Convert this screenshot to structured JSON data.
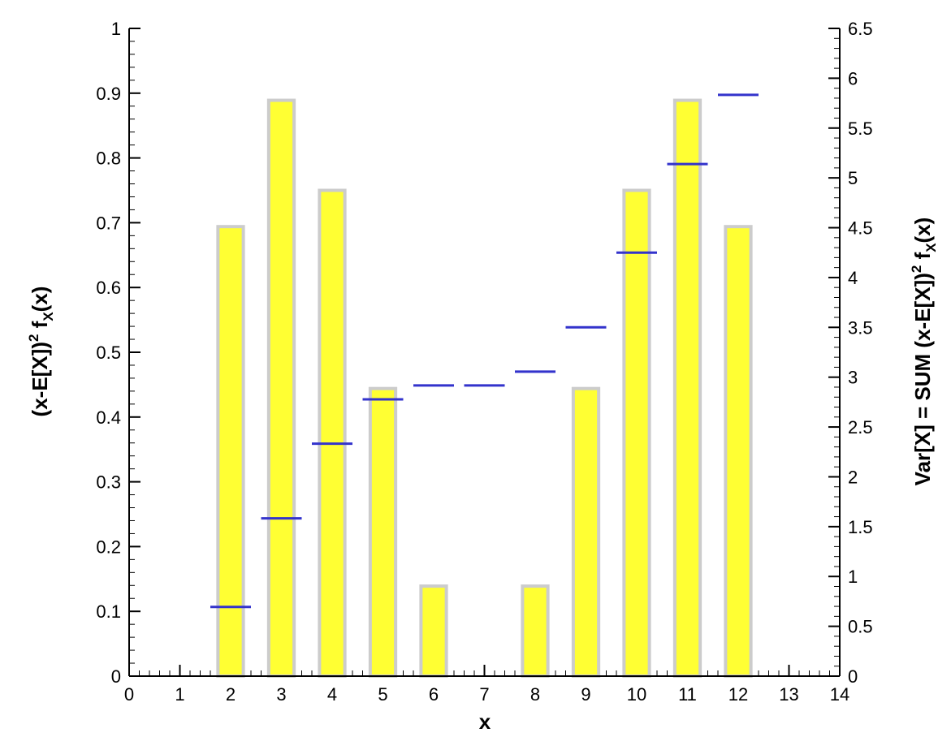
{
  "chart_data": {
    "type": "bar",
    "xlabel": "x",
    "ylabel_left": {
      "main_1": "(x-E[X])",
      "sup": "2",
      "main_2": " f",
      "sub": "X",
      "main_3": "(x)"
    },
    "ylabel_right": {
      "main_1": "Var[X] = SUM (x-E[X])",
      "sup": "2",
      "main_2": " f",
      "sub": "X",
      "main_3": "(x)"
    },
    "xlim": [
      0,
      14
    ],
    "ylim_left": [
      0,
      1
    ],
    "ylim_right": [
      0,
      6.5
    ],
    "x_ticks": [
      "0",
      "1",
      "2",
      "3",
      "4",
      "5",
      "6",
      "7",
      "8",
      "9",
      "10",
      "11",
      "12",
      "13",
      "14"
    ],
    "y_ticks_left": [
      "0",
      "0.1",
      "0.2",
      "0.3",
      "0.4",
      "0.5",
      "0.6",
      "0.7",
      "0.8",
      "0.9",
      "1"
    ],
    "y_ticks_right": [
      "0",
      "0.5",
      "1",
      "1.5",
      "2",
      "2.5",
      "3",
      "3.5",
      "4",
      "4.5",
      "5",
      "5.5",
      "6",
      "6.5"
    ],
    "series": [
      {
        "type": "bar",
        "axis": "left",
        "x": [
          2,
          3,
          4,
          5,
          6,
          8,
          9,
          10,
          11,
          12
        ],
        "values": [
          0.694,
          0.889,
          0.75,
          0.444,
          0.139,
          0.139,
          0.444,
          0.75,
          0.889,
          0.694
        ],
        "fill": "#ffff33",
        "edge": "#cccccc"
      },
      {
        "type": "step",
        "axis": "right",
        "x": [
          2,
          3,
          4,
          5,
          6,
          7,
          8,
          9,
          10,
          11,
          12
        ],
        "values": [
          0.694,
          1.583,
          2.333,
          2.778,
          2.917,
          2.917,
          3.056,
          3.5,
          4.25,
          5.139,
          5.833
        ],
        "color": "#3333cc"
      }
    ]
  }
}
